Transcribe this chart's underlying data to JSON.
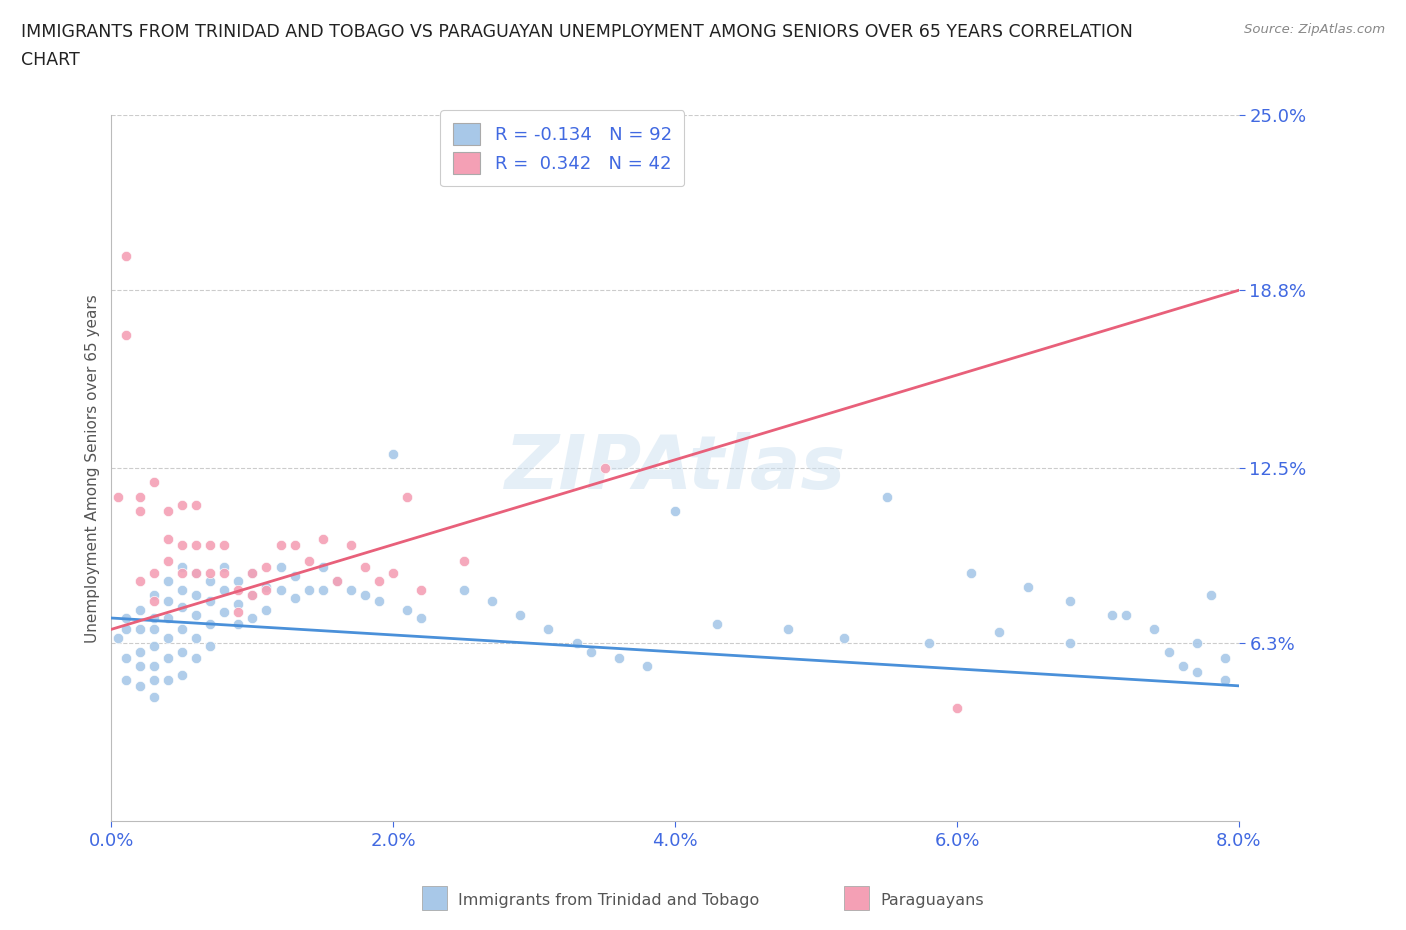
{
  "title_line1": "IMMIGRANTS FROM TRINIDAD AND TOBAGO VS PARAGUAYAN UNEMPLOYMENT AMONG SENIORS OVER 65 YEARS CORRELATION",
  "title_line2": "CHART",
  "source": "Source: ZipAtlas.com",
  "ylabel": "Unemployment Among Seniors over 65 years",
  "xlim": [
    0.0,
    0.08
  ],
  "ylim": [
    0.0,
    0.25
  ],
  "ytick_vals": [
    0.063,
    0.125,
    0.188,
    0.25
  ],
  "ytick_labels": [
    "6.3%",
    "12.5%",
    "18.8%",
    "25.0%"
  ],
  "xtick_vals": [
    0.0,
    0.02,
    0.04,
    0.06,
    0.08
  ],
  "xtick_labels": [
    "0.0%",
    "2.0%",
    "4.0%",
    "6.0%",
    "8.0%"
  ],
  "grid_color": "#cccccc",
  "background_color": "#ffffff",
  "watermark": "ZIPAtlas",
  "legend_r1": "R = -0.134   N = 92",
  "legend_r2": "R =  0.342   N = 42",
  "color_blue": "#a8c8e8",
  "color_pink": "#f4a0b5",
  "line_color_blue": "#4a90d9",
  "line_color_pink": "#e8607a",
  "text_color": "#4169E1",
  "label_color": "#555555",
  "blue_trend_x": [
    0.0,
    0.08
  ],
  "blue_trend_y": [
    0.072,
    0.048
  ],
  "pink_trend_x": [
    0.0,
    0.08
  ],
  "pink_trend_y": [
    0.068,
    0.188
  ],
  "blue_scatter_x": [
    0.0005,
    0.001,
    0.001,
    0.001,
    0.001,
    0.002,
    0.002,
    0.002,
    0.002,
    0.002,
    0.003,
    0.003,
    0.003,
    0.003,
    0.003,
    0.003,
    0.003,
    0.004,
    0.004,
    0.004,
    0.004,
    0.004,
    0.004,
    0.005,
    0.005,
    0.005,
    0.005,
    0.005,
    0.005,
    0.006,
    0.006,
    0.006,
    0.006,
    0.006,
    0.007,
    0.007,
    0.007,
    0.007,
    0.008,
    0.008,
    0.008,
    0.009,
    0.009,
    0.009,
    0.01,
    0.01,
    0.01,
    0.011,
    0.011,
    0.012,
    0.012,
    0.013,
    0.013,
    0.014,
    0.015,
    0.015,
    0.016,
    0.017,
    0.018,
    0.019,
    0.02,
    0.021,
    0.022,
    0.025,
    0.027,
    0.029,
    0.031,
    0.033,
    0.034,
    0.036,
    0.038,
    0.04,
    0.043,
    0.048,
    0.052,
    0.055,
    0.058,
    0.061,
    0.065,
    0.068,
    0.071,
    0.074,
    0.077,
    0.078,
    0.079,
    0.063,
    0.068,
    0.072,
    0.075,
    0.076,
    0.077,
    0.079
  ],
  "blue_scatter_y": [
    0.065,
    0.068,
    0.072,
    0.058,
    0.05,
    0.075,
    0.068,
    0.06,
    0.055,
    0.048,
    0.08,
    0.072,
    0.068,
    0.062,
    0.055,
    0.05,
    0.044,
    0.085,
    0.078,
    0.072,
    0.065,
    0.058,
    0.05,
    0.09,
    0.082,
    0.076,
    0.068,
    0.06,
    0.052,
    0.088,
    0.08,
    0.073,
    0.065,
    0.058,
    0.085,
    0.078,
    0.07,
    0.062,
    0.09,
    0.082,
    0.074,
    0.085,
    0.077,
    0.07,
    0.088,
    0.08,
    0.072,
    0.083,
    0.075,
    0.09,
    0.082,
    0.087,
    0.079,
    0.082,
    0.09,
    0.082,
    0.085,
    0.082,
    0.08,
    0.078,
    0.13,
    0.075,
    0.072,
    0.082,
    0.078,
    0.073,
    0.068,
    0.063,
    0.06,
    0.058,
    0.055,
    0.11,
    0.07,
    0.068,
    0.065,
    0.115,
    0.063,
    0.088,
    0.083,
    0.078,
    0.073,
    0.068,
    0.063,
    0.08,
    0.058,
    0.067,
    0.063,
    0.073,
    0.06,
    0.055,
    0.053,
    0.05
  ],
  "pink_scatter_x": [
    0.0005,
    0.001,
    0.001,
    0.002,
    0.002,
    0.002,
    0.003,
    0.003,
    0.003,
    0.004,
    0.004,
    0.004,
    0.005,
    0.005,
    0.005,
    0.006,
    0.006,
    0.006,
    0.007,
    0.007,
    0.008,
    0.008,
    0.009,
    0.009,
    0.01,
    0.01,
    0.011,
    0.011,
    0.012,
    0.013,
    0.014,
    0.015,
    0.016,
    0.017,
    0.018,
    0.019,
    0.02,
    0.021,
    0.022,
    0.025,
    0.035,
    0.06
  ],
  "pink_scatter_y": [
    0.115,
    0.2,
    0.172,
    0.11,
    0.085,
    0.115,
    0.12,
    0.088,
    0.078,
    0.11,
    0.1,
    0.092,
    0.112,
    0.098,
    0.088,
    0.112,
    0.098,
    0.088,
    0.098,
    0.088,
    0.098,
    0.088,
    0.082,
    0.074,
    0.088,
    0.08,
    0.09,
    0.082,
    0.098,
    0.098,
    0.092,
    0.1,
    0.085,
    0.098,
    0.09,
    0.085,
    0.088,
    0.115,
    0.082,
    0.092,
    0.125,
    0.04
  ]
}
